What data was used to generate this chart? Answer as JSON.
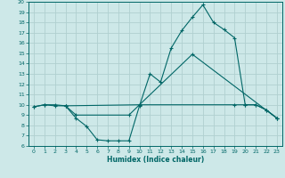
{
  "xlabel": "Humidex (Indice chaleur)",
  "xlim": [
    -0.5,
    23.5
  ],
  "ylim": [
    6,
    20
  ],
  "xticks": [
    0,
    1,
    2,
    3,
    4,
    5,
    6,
    7,
    8,
    9,
    10,
    11,
    12,
    13,
    14,
    15,
    16,
    17,
    18,
    19,
    20,
    21,
    22,
    23
  ],
  "yticks": [
    6,
    7,
    8,
    9,
    10,
    11,
    12,
    13,
    14,
    15,
    16,
    17,
    18,
    19,
    20
  ],
  "bg_color": "#cde8e8",
  "line_color": "#006666",
  "grid_color": "#b0d0d0",
  "line1_x": [
    0,
    1,
    2,
    3,
    4,
    5,
    6,
    7,
    8,
    9,
    10,
    11,
    12,
    13,
    14,
    15,
    16,
    17,
    18,
    19,
    20,
    21,
    22,
    23
  ],
  "line1_y": [
    9.8,
    10.0,
    9.9,
    9.9,
    8.7,
    7.9,
    6.6,
    6.5,
    6.5,
    6.5,
    9.9,
    13.0,
    12.2,
    15.5,
    17.2,
    18.5,
    19.7,
    18.0,
    17.3,
    16.5,
    10.0,
    10.0,
    9.5,
    8.7
  ],
  "line2_x": [
    0,
    1,
    2,
    3,
    4,
    9,
    10,
    19,
    20,
    21,
    22,
    23
  ],
  "line2_y": [
    9.8,
    10.0,
    10.0,
    9.9,
    9.0,
    9.0,
    10.0,
    10.0,
    10.0,
    10.0,
    9.5,
    8.7
  ],
  "line3_x": [
    3,
    10,
    15,
    23
  ],
  "line3_y": [
    9.9,
    10.0,
    14.9,
    8.7
  ]
}
